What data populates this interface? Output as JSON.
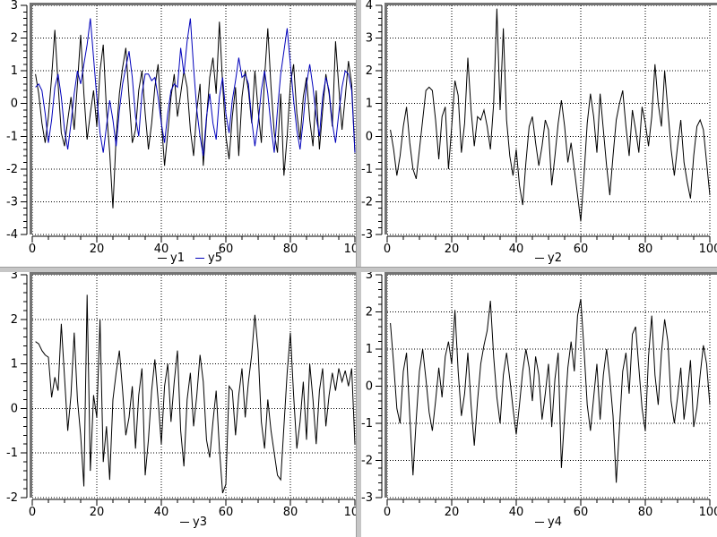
{
  "figure": {
    "background": "#ffffff",
    "frame_color": "#737373",
    "separator_color": "#c6c6c6",
    "axis_color": "#000000",
    "grid_color": "#000000",
    "label_color": "#000000"
  },
  "chart_data": [
    {
      "id": "top-left",
      "type": "line",
      "title": "",
      "xlabel": "",
      "ylabel": "",
      "xlim": [
        0,
        100
      ],
      "ylim": [
        -4,
        3
      ],
      "xticks": [
        0,
        20,
        40,
        60,
        80,
        100
      ],
      "yticks": [
        -4,
        -3,
        -2,
        -1,
        0,
        1,
        2,
        3
      ],
      "x_minor_step": 5,
      "y_minor_step": 0.2,
      "grid": "dotted",
      "legend_position": "below-axis",
      "x_start": 1,
      "series": [
        {
          "name": "y1",
          "color": "#000000",
          "values": [
            0.9,
            0.3,
            -0.6,
            -1.2,
            -0.4,
            0.8,
            2.25,
            0.6,
            -0.9,
            -1.3,
            -0.5,
            0.2,
            -0.8,
            0.6,
            2.1,
            0.3,
            -1.1,
            -0.3,
            0.4,
            -0.7,
            1.0,
            1.8,
            -0.2,
            -1.5,
            -3.2,
            -1.0,
            0.3,
            1.1,
            1.7,
            0.2,
            -1.2,
            -0.8,
            0.4,
            1.0,
            -0.3,
            -1.4,
            -0.6,
            0.5,
            1.2,
            -0.5,
            -1.9,
            -0.9,
            0.2,
            0.9,
            -0.4,
            0.3,
            1.0,
            0.5,
            -0.8,
            -1.6,
            -0.2,
            0.6,
            -1.9,
            -0.5,
            0.8,
            1.4,
            0.3,
            2.5,
            0.6,
            -1.0,
            -1.7,
            -0.4,
            0.5,
            -1.6,
            0.2,
            1.0,
            0.4,
            -0.6,
            1.0,
            -0.2,
            -1.2,
            0.8,
            2.3,
            0.5,
            -0.9,
            -1.5,
            0.3,
            -2.2,
            -1.0,
            0.6,
            1.2,
            -0.3,
            -1.1,
            0.2,
            0.8,
            -0.5,
            -1.3,
            0.4,
            -1.4,
            -0.2,
            0.9,
            0.3,
            -0.7,
            1.9,
            0.5,
            -0.8,
            0.2,
            1.3,
            0.6,
            -1.5
          ]
        },
        {
          "name": "y5",
          "color": "#0000bb",
          "values": [
            0.5,
            0.6,
            0.4,
            -0.3,
            -1.2,
            -0.5,
            0.5,
            0.9,
            0.2,
            -0.8,
            -1.4,
            -0.6,
            0.3,
            1.0,
            0.6,
            1.2,
            1.8,
            2.6,
            1.4,
            0.2,
            -0.9,
            -1.5,
            -0.7,
            0.1,
            -0.5,
            -1.3,
            -0.2,
            0.6,
            1.1,
            1.6,
            0.8,
            -0.4,
            -1.0,
            0.3,
            0.9,
            0.9,
            0.7,
            0.8,
            0.2,
            -0.6,
            -1.2,
            -0.3,
            0.4,
            0.6,
            0.5,
            1.7,
            0.9,
            1.9,
            2.6,
            1.1,
            -0.2,
            -1.0,
            -1.6,
            -0.4,
            0.3,
            -0.6,
            -1.1,
            0.2,
            0.8,
            -0.3,
            -0.9,
            0.1,
            0.7,
            1.4,
            0.8,
            0.9,
            0.6,
            -0.5,
            -1.3,
            -0.6,
            0.4,
            1.0,
            0.3,
            -0.7,
            -1.5,
            -0.2,
            0.9,
            1.6,
            2.3,
            1.2,
            0.1,
            -0.8,
            -1.4,
            -0.5,
            0.6,
            1.2,
            0.5,
            -0.4,
            -1.0,
            0.2,
            0.8,
            0.4,
            -0.6,
            -1.2,
            -0.3,
            0.5,
            1.0,
            0.9,
            0.4,
            -1.5
          ]
        }
      ]
    },
    {
      "id": "top-right",
      "type": "line",
      "title": "",
      "xlabel": "",
      "ylabel": "",
      "xlim": [
        0,
        100
      ],
      "ylim": [
        -3,
        4
      ],
      "xticks": [
        0,
        20,
        40,
        60,
        80,
        100
      ],
      "yticks": [
        -3,
        -2,
        -1,
        0,
        1,
        2,
        3,
        4
      ],
      "x_minor_step": 5,
      "y_minor_step": 0.2,
      "grid": "dotted",
      "legend_position": "below-axis",
      "x_start": 1,
      "series": [
        {
          "name": "y2",
          "color": "#000000",
          "values": [
            0.2,
            -0.4,
            -1.2,
            -0.6,
            0.3,
            0.9,
            -0.2,
            -1.0,
            -1.3,
            -0.4,
            0.5,
            1.4,
            1.5,
            1.4,
            0.5,
            -0.7,
            0.6,
            0.9,
            -1.0,
            0.3,
            1.7,
            1.25,
            -0.5,
            0.4,
            2.4,
            0.8,
            -0.3,
            0.6,
            0.5,
            0.8,
            0.3,
            -0.4,
            1.0,
            3.9,
            0.8,
            3.3,
            0.5,
            -0.6,
            -1.2,
            -0.4,
            -1.5,
            -2.1,
            -0.8,
            0.3,
            0.6,
            -0.2,
            -0.9,
            -0.3,
            0.5,
            0.2,
            -1.5,
            -0.6,
            0.4,
            1.1,
            0.3,
            -0.8,
            -0.2,
            -1.0,
            -1.8,
            -2.6,
            -1.2,
            0.4,
            1.3,
            0.6,
            -0.5,
            1.3,
            0.2,
            -0.9,
            -1.8,
            -0.6,
            0.5,
            1.0,
            1.4,
            0.3,
            -0.6,
            0.8,
            0.2,
            -0.5,
            0.9,
            0.4,
            -0.3,
            0.6,
            2.2,
            1.0,
            0.3,
            2.0,
            0.8,
            -0.4,
            -1.2,
            -0.3,
            0.5,
            -0.8,
            -1.4,
            -1.9,
            -0.6,
            0.3,
            0.5,
            0.2,
            -0.8,
            -1.8
          ]
        }
      ]
    },
    {
      "id": "bottom-left",
      "type": "line",
      "title": "",
      "xlabel": "",
      "ylabel": "",
      "xlim": [
        0,
        100
      ],
      "ylim": [
        -2,
        3
      ],
      "xticks": [
        0,
        20,
        40,
        60,
        80,
        100
      ],
      "yticks": [
        -2,
        -1,
        0,
        1,
        2,
        3
      ],
      "x_minor_step": 5,
      "y_minor_step": 0.2,
      "grid": "dotted",
      "legend_position": "below-axis",
      "x_start": 1,
      "series": [
        {
          "name": "y3",
          "color": "#000000",
          "values": [
            1.5,
            1.45,
            1.3,
            1.2,
            1.15,
            0.25,
            0.7,
            0.4,
            1.9,
            0.7,
            -0.5,
            0.3,
            1.7,
            0.2,
            -0.6,
            -1.75,
            2.55,
            -1.4,
            0.3,
            -0.2,
            2.0,
            -1.2,
            -0.4,
            -1.6,
            0.2,
            0.8,
            1.3,
            0.4,
            -0.6,
            -0.2,
            0.5,
            -0.9,
            0.3,
            0.9,
            -1.5,
            -0.7,
            0.4,
            1.1,
            0.2,
            -0.8,
            0.5,
            1.0,
            -0.3,
            0.6,
            1.3,
            -0.5,
            -1.3,
            0.2,
            0.8,
            -0.4,
            0.3,
            1.2,
            0.6,
            -0.7,
            -1.1,
            -0.3,
            0.4,
            -0.9,
            -1.9,
            -1.7,
            0.5,
            0.4,
            -0.6,
            0.3,
            0.9,
            -0.2,
            0.6,
            1.2,
            2.1,
            1.3,
            -0.3,
            -0.9,
            0.2,
            -0.5,
            -1.0,
            -1.5,
            -1.6,
            -0.4,
            0.8,
            1.7,
            0.3,
            -0.9,
            -0.3,
            0.6,
            -0.7,
            1.0,
            0.2,
            -0.8,
            0.4,
            0.9,
            -0.4,
            0.3,
            0.8,
            0.4,
            0.9,
            0.6,
            0.85,
            0.5,
            0.9,
            -0.8
          ]
        }
      ]
    },
    {
      "id": "bottom-right",
      "type": "line",
      "title": "",
      "xlabel": "",
      "ylabel": "",
      "xlim": [
        0,
        100
      ],
      "ylim": [
        -3,
        3
      ],
      "xticks": [
        0,
        20,
        40,
        60,
        80,
        100
      ],
      "yticks": [
        -3,
        -2,
        -1,
        0,
        1,
        2,
        3
      ],
      "x_minor_step": 5,
      "y_minor_step": 0.2,
      "grid": "dotted",
      "legend_position": "below-axis",
      "x_start": 1,
      "series": [
        {
          "name": "y4",
          "color": "#000000",
          "values": [
            1.7,
            0.6,
            -0.6,
            -1.0,
            0.4,
            0.9,
            -0.8,
            -2.4,
            -0.9,
            0.4,
            1.0,
            0.2,
            -0.7,
            -1.2,
            -0.4,
            0.5,
            -0.3,
            0.8,
            1.2,
            0.6,
            2.05,
            0.4,
            -0.8,
            -0.2,
            0.9,
            -0.5,
            -1.6,
            -0.4,
            0.6,
            1.1,
            1.5,
            2.3,
            0.8,
            -0.3,
            -1.0,
            0.3,
            0.9,
            0.2,
            -0.6,
            -1.3,
            -0.5,
            0.4,
            1.0,
            0.5,
            -0.4,
            0.8,
            0.3,
            -0.9,
            -0.2,
            0.6,
            -1.1,
            0.2,
            0.9,
            -2.2,
            -0.8,
            0.5,
            1.2,
            0.4,
            1.9,
            2.35,
            1.0,
            -0.5,
            -1.2,
            -0.3,
            0.6,
            -0.9,
            0.3,
            1.0,
            0.2,
            -0.8,
            -2.6,
            -1.1,
            0.4,
            0.9,
            -0.2,
            1.4,
            1.6,
            0.5,
            -0.6,
            -1.2,
            0.8,
            1.9,
            0.3,
            -0.5,
            0.9,
            1.8,
            1.2,
            -0.4,
            -1.0,
            -0.3,
            0.5,
            -0.9,
            -0.2,
            0.7,
            -1.1,
            -0.6,
            0.3,
            1.1,
            0.6,
            -0.5
          ]
        }
      ]
    }
  ]
}
